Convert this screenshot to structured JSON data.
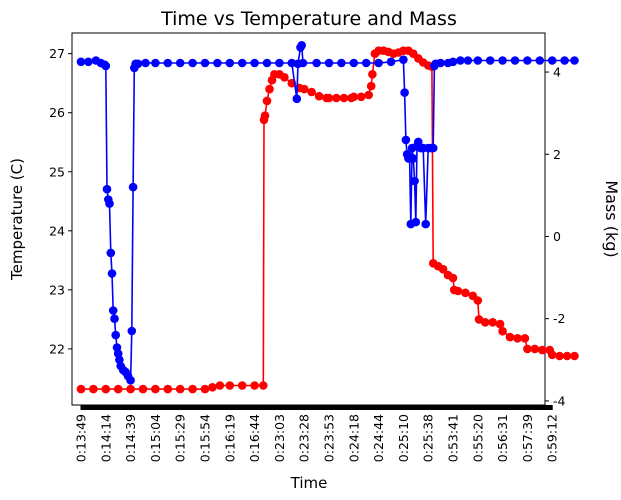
{
  "chart_data": {
    "type": "line",
    "title": "Time vs Temperature and Mass",
    "xlabel": "Time",
    "ylabel_left": "Temperature (C)",
    "ylabel_right": "Mass (kg)",
    "ylim_left": [
      21.05,
      27.35
    ],
    "ylim_right": [
      -4.1,
      4.95
    ],
    "yticks_left": [
      22,
      23,
      24,
      25,
      26,
      27
    ],
    "yticks_right": [
      -4,
      -2,
      0,
      2,
      4
    ],
    "x_ticks": [
      "0:13:49",
      "0:14:14",
      "0:14:39",
      "0:15:04",
      "0:15:29",
      "0:15:54",
      "0:16:19",
      "0:16:44",
      "0:23:03",
      "0:23:28",
      "0:23:53",
      "0:24:18",
      "0:24:44",
      "0:25:10",
      "0:25:38",
      "0:53:41",
      "0:55:20",
      "0:56:31",
      "0:57:39",
      "0:59:12"
    ],
    "colors": {
      "temperature": "#ff0000",
      "mass": "#0000ff"
    },
    "series": [
      {
        "axis": "left",
        "color": "#ff0000",
        "points": [
          [
            0,
            21.32
          ],
          [
            0.5,
            21.32
          ],
          [
            1,
            21.32
          ],
          [
            1.5,
            21.32
          ],
          [
            2,
            21.32
          ],
          [
            2.5,
            21.32
          ],
          [
            3,
            21.32
          ],
          [
            3.5,
            21.32
          ],
          [
            4,
            21.32
          ],
          [
            4.5,
            21.32
          ],
          [
            5,
            21.32
          ],
          [
            5.3,
            21.35
          ],
          [
            5.6,
            21.38
          ],
          [
            6,
            21.38
          ],
          [
            6.5,
            21.38
          ],
          [
            7,
            21.38
          ],
          [
            7.35,
            21.38
          ],
          [
            7.38,
            25.88
          ],
          [
            7.42,
            25.95
          ],
          [
            7.5,
            26.2
          ],
          [
            7.6,
            26.4
          ],
          [
            7.7,
            26.55
          ],
          [
            7.8,
            26.65
          ],
          [
            8,
            26.65
          ],
          [
            8.2,
            26.6
          ],
          [
            8.5,
            26.5
          ],
          [
            8.8,
            26.42
          ],
          [
            9,
            26.4
          ],
          [
            9.3,
            26.35
          ],
          [
            9.6,
            26.28
          ],
          [
            9.9,
            26.25
          ],
          [
            10,
            26.25
          ],
          [
            10.3,
            26.25
          ],
          [
            10.6,
            26.25
          ],
          [
            10.9,
            26.25
          ],
          [
            11,
            26.27
          ],
          [
            11.3,
            26.27
          ],
          [
            11.6,
            26.3
          ],
          [
            11.7,
            26.45
          ],
          [
            11.75,
            26.65
          ],
          [
            11.85,
            27.0
          ],
          [
            12,
            27.05
          ],
          [
            12.2,
            27.05
          ],
          [
            12.4,
            27.03
          ],
          [
            12.6,
            27.0
          ],
          [
            12.8,
            27.02
          ],
          [
            13,
            27.05
          ],
          [
            13.2,
            27.05
          ],
          [
            13.4,
            27.0
          ],
          [
            13.6,
            26.92
          ],
          [
            13.8,
            26.85
          ],
          [
            14,
            26.8
          ],
          [
            14.15,
            26.78
          ],
          [
            14.2,
            23.45
          ],
          [
            14.4,
            23.4
          ],
          [
            14.6,
            23.35
          ],
          [
            14.8,
            23.25
          ],
          [
            15,
            23.2
          ],
          [
            15.05,
            23.0
          ],
          [
            15.2,
            22.98
          ],
          [
            15.5,
            22.95
          ],
          [
            15.8,
            22.9
          ],
          [
            16,
            22.82
          ],
          [
            16.05,
            22.5
          ],
          [
            16.3,
            22.45
          ],
          [
            16.6,
            22.45
          ],
          [
            16.9,
            22.42
          ],
          [
            17,
            22.3
          ],
          [
            17.3,
            22.2
          ],
          [
            17.6,
            22.18
          ],
          [
            17.9,
            22.18
          ],
          [
            18,
            22.0
          ],
          [
            18.3,
            22.0
          ],
          [
            18.6,
            21.98
          ],
          [
            18.9,
            21.98
          ],
          [
            19,
            21.9
          ],
          [
            19.3,
            21.88
          ],
          [
            19.6,
            21.88
          ],
          [
            19.9,
            21.88
          ]
        ]
      },
      {
        "axis": "right",
        "color": "#0000ff",
        "points": [
          [
            0,
            4.25
          ],
          [
            0.3,
            4.25
          ],
          [
            0.6,
            4.28
          ],
          [
            0.8,
            4.22
          ],
          [
            0.95,
            4.18
          ],
          [
            1,
            4.15
          ],
          [
            1.05,
            1.15
          ],
          [
            1.1,
            0.9
          ],
          [
            1.15,
            0.8
          ],
          [
            1.2,
            -0.4
          ],
          [
            1.25,
            -0.9
          ],
          [
            1.3,
            -1.8
          ],
          [
            1.35,
            -2.0
          ],
          [
            1.4,
            -2.4
          ],
          [
            1.45,
            -2.7
          ],
          [
            1.5,
            -2.85
          ],
          [
            1.55,
            -3.0
          ],
          [
            1.6,
            -3.15
          ],
          [
            1.7,
            -3.25
          ],
          [
            1.8,
            -3.3
          ],
          [
            1.9,
            -3.4
          ],
          [
            2.0,
            -3.5
          ],
          [
            2.05,
            -2.3
          ],
          [
            2.1,
            1.2
          ],
          [
            2.15,
            4.1
          ],
          [
            2.2,
            4.2
          ],
          [
            2.3,
            4.2
          ],
          [
            2.6,
            4.22
          ],
          [
            3,
            4.22
          ],
          [
            3.5,
            4.22
          ],
          [
            4,
            4.22
          ],
          [
            4.5,
            4.22
          ],
          [
            5,
            4.22
          ],
          [
            5.5,
            4.22
          ],
          [
            6,
            4.22
          ],
          [
            6.5,
            4.22
          ],
          [
            7,
            4.22
          ],
          [
            7.5,
            4.22
          ],
          [
            8,
            4.22
          ],
          [
            8.5,
            4.22
          ],
          [
            8.7,
            3.35
          ],
          [
            8.75,
            4.2
          ],
          [
            8.85,
            4.6
          ],
          [
            8.9,
            4.65
          ],
          [
            8.95,
            4.22
          ],
          [
            9.5,
            4.22
          ],
          [
            10,
            4.22
          ],
          [
            10.5,
            4.22
          ],
          [
            11,
            4.22
          ],
          [
            11.5,
            4.22
          ],
          [
            12,
            4.22
          ],
          [
            12.5,
            4.25
          ],
          [
            13,
            4.3
          ],
          [
            13.05,
            3.5
          ],
          [
            13.1,
            2.35
          ],
          [
            13.15,
            2.0
          ],
          [
            13.2,
            1.9
          ],
          [
            13.25,
            1.9
          ],
          [
            13.3,
            0.3
          ],
          [
            13.35,
            2.15
          ],
          [
            13.4,
            1.9
          ],
          [
            13.45,
            1.35
          ],
          [
            13.5,
            0.35
          ],
          [
            13.55,
            2.2
          ],
          [
            13.6,
            2.3
          ],
          [
            13.7,
            2.15
          ],
          [
            13.8,
            2.15
          ],
          [
            13.9,
            0.3
          ],
          [
            14,
            2.15
          ],
          [
            14.1,
            2.15
          ],
          [
            14.2,
            2.15
          ],
          [
            14.25,
            4.15
          ],
          [
            14.3,
            4.2
          ],
          [
            14.5,
            4.22
          ],
          [
            14.8,
            4.22
          ],
          [
            15,
            4.25
          ],
          [
            15.3,
            4.28
          ],
          [
            15.6,
            4.28
          ],
          [
            16,
            4.28
          ],
          [
            16.5,
            4.28
          ],
          [
            17,
            4.28
          ],
          [
            17.5,
            4.28
          ],
          [
            18,
            4.28
          ],
          [
            18.5,
            4.28
          ],
          [
            19,
            4.28
          ],
          [
            19.5,
            4.28
          ],
          [
            19.9,
            4.28
          ]
        ]
      }
    ]
  }
}
